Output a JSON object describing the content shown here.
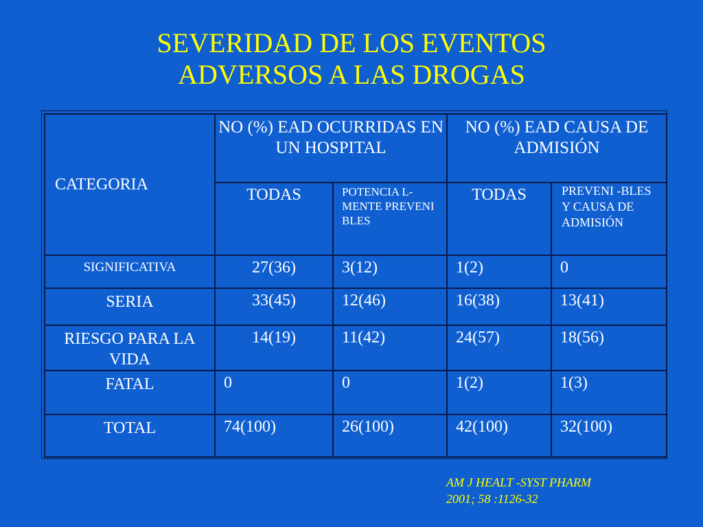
{
  "title": {
    "line1": "SEVERIDAD DE LOS EVENTOS",
    "line2": "ADVERSOS A LAS DROGAS"
  },
  "table": {
    "category_header": "CATEGORIA",
    "group1_header": "NO (%) EAD OCURRIDAS EN UN HOSPITAL",
    "group2_header": "NO (%) EAD CAUSA DE ADMISIÓN",
    "sub_headers": {
      "g1_all": "TODAS",
      "g1_prev": "POTENCIA L-MENTE PREVENI BLES",
      "g2_all": "TODAS",
      "g2_prev": "PREVENI -BLES Y CAUSA DE ADMISIÓN"
    },
    "rows": [
      {
        "label": "SIGNIFICATIVA",
        "c1": "27(36)",
        "c2": "3(12)",
        "c3": "1(2)",
        "c4": "0"
      },
      {
        "label": "SERIA",
        "c1": "33(45)",
        "c2": "12(46)",
        "c3": "16(38)",
        "c4": "13(41)"
      },
      {
        "label": "RIESGO PARA LA VIDA",
        "c1": "14(19)",
        "c2": "11(42)",
        "c3": "24(57)",
        "c4": "18(56)"
      },
      {
        "label": "FATAL",
        "c1": "0",
        "c2": "0",
        "c3": "1(2)",
        "c4": "1(3)"
      },
      {
        "label": "TOTAL",
        "c1": "74(100)",
        "c2": "26(100)",
        "c3": "42(100)",
        "c4": "32(100)"
      }
    ]
  },
  "reference": {
    "line1": "AM  J HEALT -SYST PHARM",
    "line2": "2001; 58 :1126-32"
  },
  "colors": {
    "background": "#0f5fd1",
    "title": "#ffff00",
    "text": "#ffffff",
    "border": "#0b1a4a"
  }
}
